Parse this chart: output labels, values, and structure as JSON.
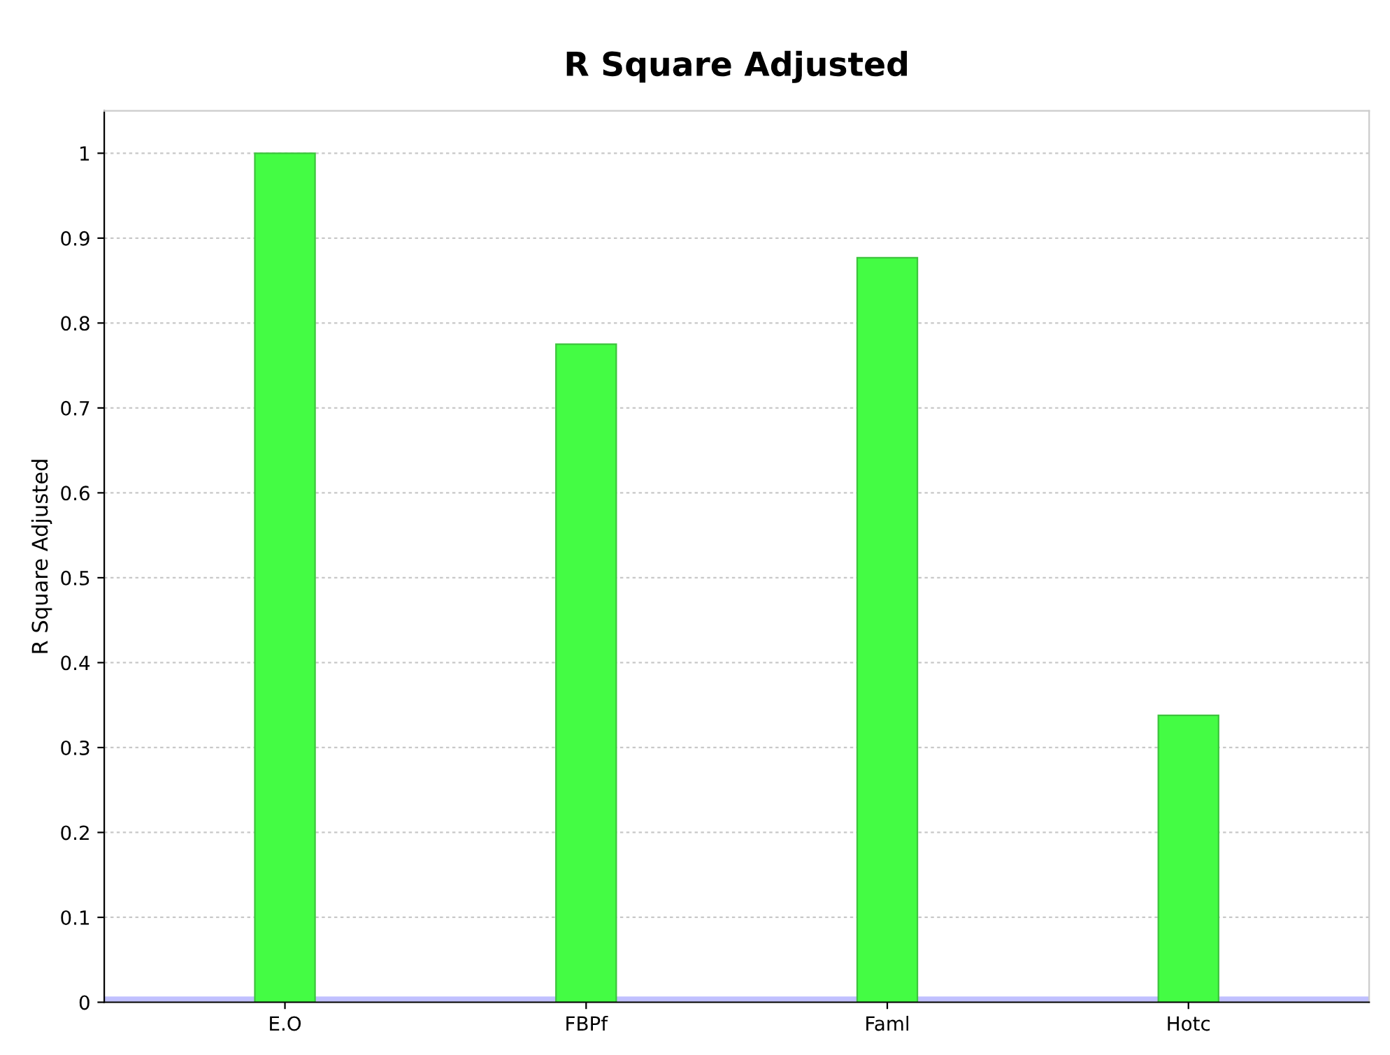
{
  "chart_data": {
    "type": "bar",
    "title": "R Square Adjusted",
    "ylabel": "R Square Adjusted",
    "categories": [
      "E.O",
      "FBPf",
      "Faml",
      "Hotc"
    ],
    "values": [
      1.0,
      0.775,
      0.877,
      0.338
    ],
    "color": "#44fc44",
    "ylim": [
      0,
      1.05
    ],
    "yticks": [
      0,
      0.1,
      0.2,
      0.3,
      0.4,
      0.5,
      0.6,
      0.7,
      0.8,
      0.9,
      1
    ],
    "grid": "y",
    "legend": false
  }
}
